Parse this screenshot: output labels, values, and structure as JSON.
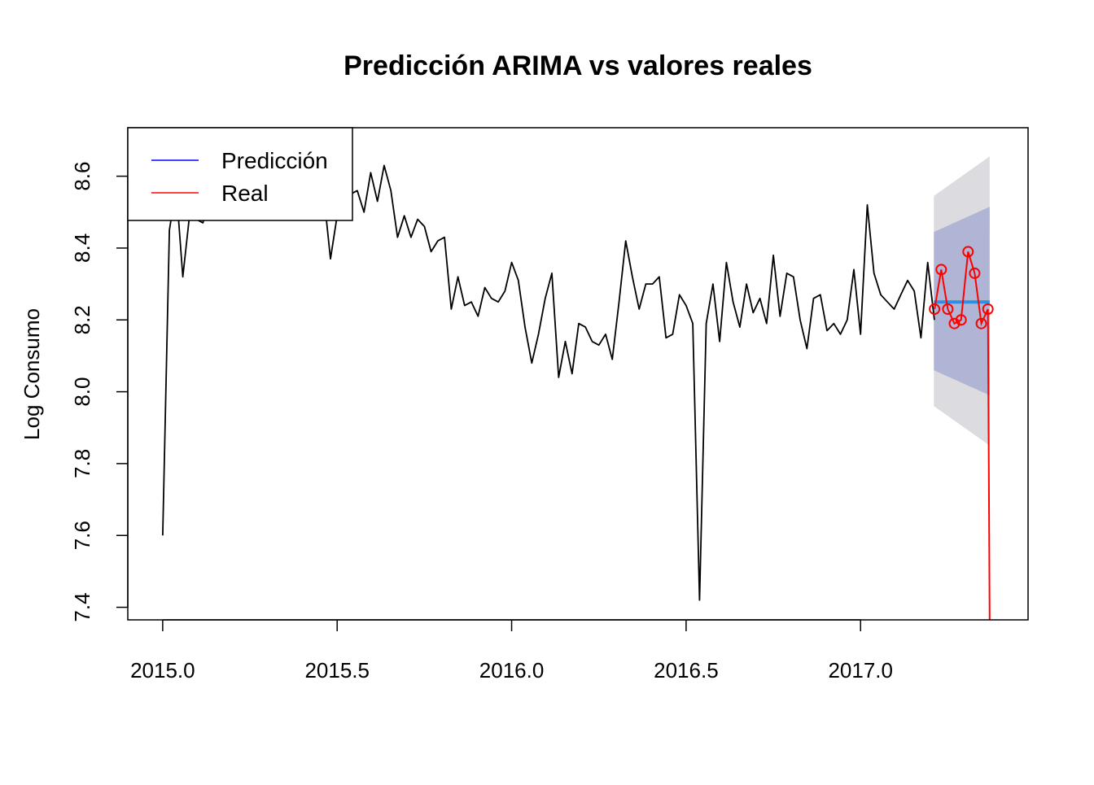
{
  "chart_data": {
    "type": "line",
    "title": "Predicción ARIMA vs valores reales",
    "xlabel": "",
    "ylabel": "Log Consumo",
    "xlim": [
      2014.9,
      2017.48
    ],
    "ylim": [
      7.365,
      8.735
    ],
    "grid": false,
    "legend_position": "top-left",
    "x_ticks": [
      2015.0,
      2015.5,
      2016.0,
      2016.5,
      2017.0
    ],
    "x_tick_labels": [
      "2015.0",
      "2015.5",
      "2016.0",
      "2016.5",
      "2017.0"
    ],
    "y_ticks": [
      7.4,
      7.6,
      7.8,
      8.0,
      8.2,
      8.4,
      8.6
    ],
    "y_tick_labels": [
      "7.4",
      "7.6",
      "7.8",
      "8.0",
      "8.2",
      "8.4",
      "8.6"
    ],
    "legend": [
      {
        "label": "Predicción",
        "color": "#0000ff"
      },
      {
        "label": "Real",
        "color": "#ff0000"
      }
    ],
    "colors": {
      "observed": "#000000",
      "forecast": "#2f8fde",
      "real": "#ff0000",
      "band95": "#dbdbe0",
      "band80": "#b1b5d5"
    },
    "observed": {
      "start": 2015.0,
      "step": 0.019231,
      "values": [
        7.6,
        8.45,
        8.57,
        8.32,
        8.49,
        8.48,
        8.47,
        8.55,
        8.56,
        8.6,
        8.52,
        8.58,
        8.57,
        8.6,
        8.52,
        8.54,
        8.56,
        8.55,
        8.58,
        8.57,
        8.5,
        8.54,
        8.55,
        8.56,
        8.55,
        8.37,
        8.49,
        8.57,
        8.55,
        8.56,
        8.5,
        8.61,
        8.53,
        8.63,
        8.56,
        8.43,
        8.49,
        8.43,
        8.48,
        8.46,
        8.39,
        8.42,
        8.43,
        8.23,
        8.32,
        8.24,
        8.25,
        8.21,
        8.29,
        8.26,
        8.25,
        8.28,
        8.36,
        8.31,
        8.18,
        8.08,
        8.16,
        8.26,
        8.33,
        8.04,
        8.14,
        8.05,
        8.19,
        8.18,
        8.14,
        8.13,
        8.16,
        8.09,
        8.25,
        8.42,
        8.32,
        8.23,
        8.3,
        8.3,
        8.32,
        8.15,
        8.16,
        8.27,
        8.24,
        8.19,
        7.42,
        8.19,
        8.3,
        8.14,
        8.36,
        8.25,
        8.18,
        8.3,
        8.22,
        8.26,
        8.19,
        8.38,
        8.21,
        8.33,
        8.32,
        8.2,
        8.12,
        8.26,
        8.27,
        8.17,
        8.19,
        8.16,
        8.2,
        8.34,
        8.16,
        8.52,
        8.33,
        8.27,
        8.25,
        8.23,
        8.27,
        8.31,
        8.28,
        8.15,
        8.36,
        8.2
      ]
    },
    "forecast": {
      "x": [
        2017.21,
        2017.37
      ],
      "values": [
        8.25,
        8.25
      ]
    },
    "band95": {
      "x": [
        2017.21,
        2017.37
      ],
      "upper": [
        8.545,
        8.655
      ],
      "lower": [
        7.96,
        7.85
      ]
    },
    "band80": {
      "x": [
        2017.21,
        2017.37
      ],
      "upper": [
        8.445,
        8.515
      ],
      "lower": [
        8.06,
        7.99
      ]
    },
    "real": {
      "x": [
        2017.212,
        2017.231,
        2017.25,
        2017.269,
        2017.288,
        2017.308,
        2017.327,
        2017.346,
        2017.365,
        2017.37
      ],
      "values": [
        8.23,
        8.34,
        8.23,
        8.19,
        8.2,
        8.39,
        8.33,
        8.19,
        8.23,
        7.365
      ],
      "markers": 9
    }
  }
}
